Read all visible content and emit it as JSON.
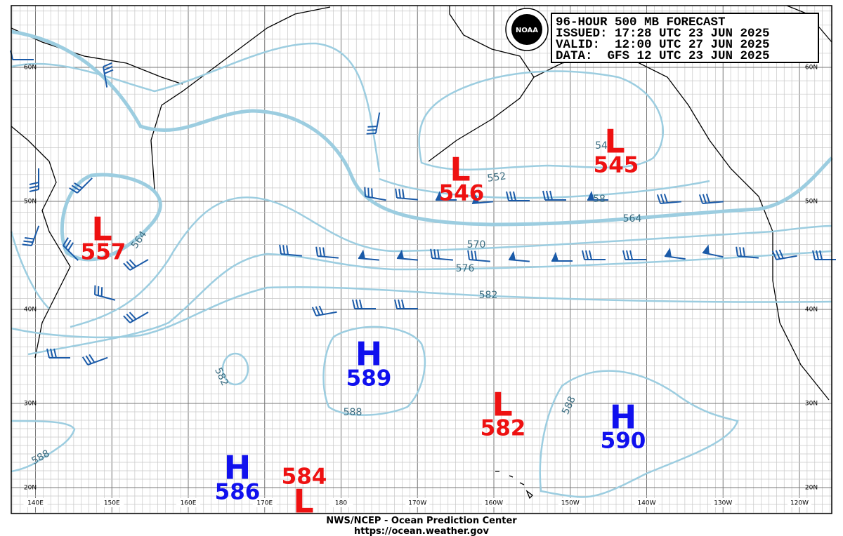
{
  "header": {
    "lines": [
      "96-HOUR 500 MB FORECAST",
      "ISSUED: 17:28 UTC 23 JUN 2025",
      "VALID:  12:00 UTC 27 JUN 2025",
      "DATA:  GFS 12 UTC 23 JUN 2025"
    ],
    "logo": "NOAA"
  },
  "lat_labels": [
    "60N",
    "50N",
    "40N",
    "30N",
    "20N"
  ],
  "lon_labels": [
    "140E",
    "150E",
    "160E",
    "170E",
    "180",
    "170W",
    "160W",
    "150W",
    "140W",
    "130W",
    "120W"
  ],
  "centers": [
    {
      "type": "L",
      "value": "557"
    },
    {
      "type": "L",
      "value": "546"
    },
    {
      "type": "L",
      "value": "545"
    },
    {
      "type": "H",
      "value": "589"
    },
    {
      "type": "L",
      "value": "582"
    },
    {
      "type": "H",
      "value": "590"
    },
    {
      "type": "H",
      "value": "586"
    },
    {
      "type": "L",
      "value": "584"
    }
  ],
  "contour_labels": [
    "564",
    "552",
    "54",
    "58",
    "564",
    "570",
    "576",
    "582",
    "582",
    "588",
    "588",
    "588"
  ],
  "footer": [
    "NWS/NCEP - Ocean Prediction Center",
    "https://ocean.weather.gov"
  ]
}
